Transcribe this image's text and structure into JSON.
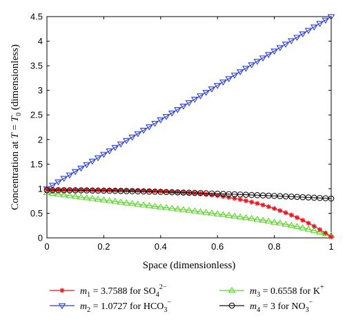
{
  "chart_data": {
    "type": "line",
    "xlabel": "Space (dimensionless)",
    "ylabel_parts": {
      "prefix": "Concentration at ",
      "var": "T",
      "eq": " = ",
      "sub_var": "T",
      "sub": "0",
      "suffix": " (dimensionless)"
    },
    "xlim": [
      0,
      1
    ],
    "ylim": [
      0,
      4.5
    ],
    "xticks": [
      0,
      0.2,
      0.4,
      0.6,
      0.8,
      1
    ],
    "xtick_labels": [
      "0",
      "0.2",
      "0.4",
      "0.6",
      "0.8",
      "1"
    ],
    "yticks": [
      0,
      0.5,
      1,
      1.5,
      2,
      2.5,
      3,
      3.5,
      4,
      4.5
    ],
    "ytick_labels": [
      "0",
      "0.5",
      "1",
      "1.5",
      "2",
      "2.5",
      "3",
      "3.5",
      "4",
      "4.5"
    ],
    "grid": false,
    "legend_position": "below",
    "series": [
      {
        "name": "m1 = 3.7588 for SO4 2-",
        "legend": {
          "var": "m",
          "sub": "1",
          "text": " = 3.7588 for SO",
          "chem_sub": "4",
          "chem_sup": "2−"
        },
        "color": "#e8161f",
        "marker": "star",
        "formula": "so4",
        "y0": 0.98,
        "y1": 0.02
      },
      {
        "name": "m2 = 1.0727 for HCO3-",
        "legend": {
          "var": "m",
          "sub": "2",
          "text": " = 1.0727 for HCO",
          "chem_sub": "3",
          "chem_sup": "−"
        },
        "color": "#2a3fd8",
        "marker": "triangle-down",
        "formula": "hco3",
        "y0": 1.0,
        "y1": 4.5
      },
      {
        "name": "m3 = 0.6558 for K+",
        "legend": {
          "var": "m",
          "sub": "3",
          "text": " = 0.6558 for K",
          "chem_sub": "",
          "chem_sup": "+"
        },
        "color": "#5bd62a",
        "marker": "triangle-up",
        "formula": "k",
        "y0": 0.92,
        "y1": 0.05
      },
      {
        "name": "m4 = 3 for NO3-",
        "legend": {
          "var": "m",
          "sub": "4",
          "text": " = 3 for NO",
          "chem_sub": "3",
          "chem_sup": "−"
        },
        "color": "#111111",
        "marker": "circle",
        "formula": "no3",
        "y0": 0.97,
        "y1": 0.8
      }
    ],
    "n_points": 51
  }
}
